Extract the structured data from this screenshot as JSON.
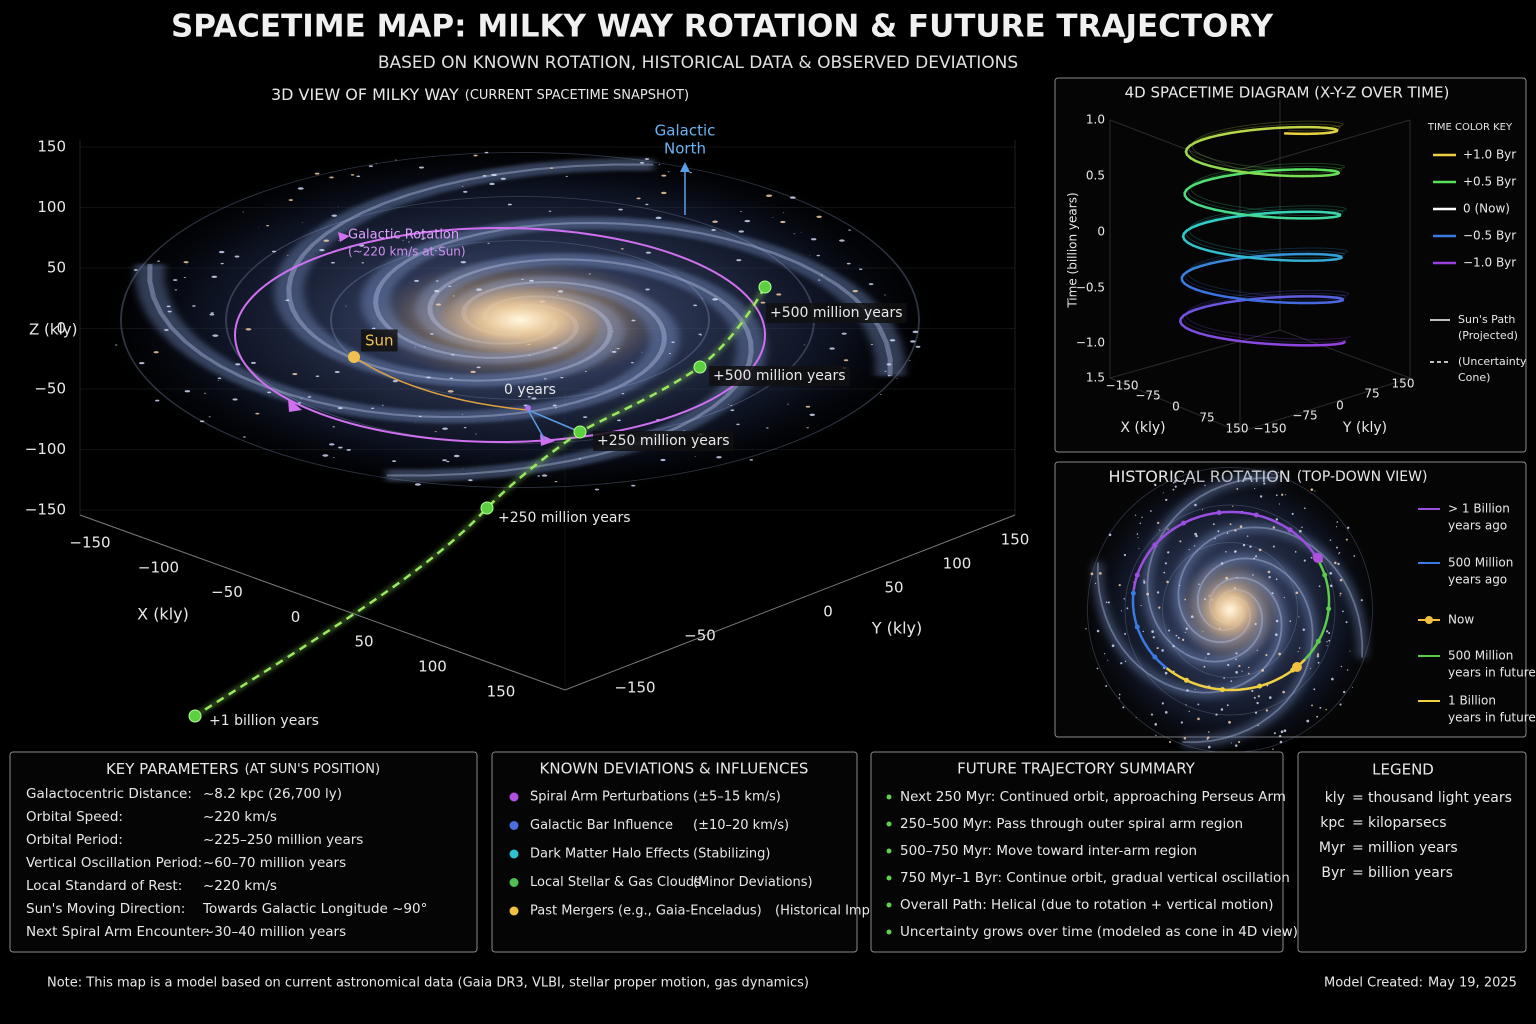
{
  "header": {
    "title": "SPACETIME MAP: MILKY WAY ROTATION & FUTURE TRAJECTORY",
    "subtitle": "BASED ON KNOWN ROTATION, HISTORICAL DATA & OBSERVED DEVIATIONS"
  },
  "main_view": {
    "title": "3D VIEW OF MILKY WAY",
    "title_note": "(CURRENT SPACETIME SNAPSHOT)",
    "z_label": "Z (kly)",
    "z_ticks": [
      "150",
      "100",
      "50",
      "0",
      "−50",
      "−100",
      "−150"
    ],
    "x_label": "X (kly)",
    "x_ticks": [
      "−150",
      "−100",
      "−50",
      "0",
      "50",
      "100",
      "150"
    ],
    "y_label": "Y (kly)",
    "y_ticks": [
      "−150",
      "−50",
      "0",
      "50",
      "100",
      "150"
    ],
    "north_label": [
      "Galactic",
      "North"
    ],
    "rotation_label": [
      "Galactic Rotation",
      "(~220 km/s at Sun)"
    ],
    "sun_label": "Sun",
    "annotations": [
      "+500 million years",
      "+500 million years",
      "0 years",
      "+250 million years",
      "+250 million years",
      "+1 billion years"
    ]
  },
  "spacetime_panel": {
    "title": "4D SPACETIME DIAGRAM (X-Y-Z OVER TIME)",
    "time_label": "Time (billion years)",
    "time_ticks": [
      "1.0",
      "0.5",
      "0",
      "−0.5",
      "−1.0",
      "1.5"
    ],
    "x_label": "X (kly)",
    "x_ticks": [
      "−150",
      "−75",
      "0",
      "75",
      "150"
    ],
    "y_label": "Y (kly)",
    "y_ticks": [
      "−150",
      "−75",
      "0",
      "75",
      "150"
    ],
    "key_title": "TIME COLOR KEY",
    "key": [
      {
        "label": "+1.0 Byr",
        "color": "#f0d040"
      },
      {
        "label": "+0.5 Byr",
        "color": "#5ce05a"
      },
      {
        "label": "0 (Now)",
        "color": "#ffffff"
      },
      {
        "label": "−0.5 Byr",
        "color": "#3b7ae0"
      },
      {
        "label": "−1.0 Byr",
        "color": "#9b3fe0"
      }
    ],
    "path_key": [
      [
        "Sun's Path",
        "(Projected)"
      ],
      [
        "(Uncertainty",
        "Cone)"
      ]
    ]
  },
  "historical_panel": {
    "title": "HISTORICAL ROTATION",
    "title_note": "(TOP-DOWN VIEW)",
    "legend": [
      {
        "lines": [
          "> 1 Billion",
          "years ago"
        ],
        "color": "#9b4fe0"
      },
      {
        "lines": [
          "500 Million",
          "years ago"
        ],
        "color": "#3b7ae0"
      },
      {
        "lines": [
          "Now"
        ],
        "color": "#f0c040"
      },
      {
        "lines": [
          "500 Million",
          "years in future"
        ],
        "color": "#5ccc4a"
      },
      {
        "lines": [
          "1 Billion",
          "years in future"
        ],
        "color": "#f0d040"
      }
    ]
  },
  "key_parameters": {
    "title": "KEY PARAMETERS",
    "title_note": "(AT SUN'S POSITION)",
    "rows": [
      [
        "Galactocentric Distance:",
        "~8.2 kpc (26,700 ly)"
      ],
      [
        "Orbital Speed:",
        "~220 km/s"
      ],
      [
        "Orbital Period:",
        "~225–250 million years"
      ],
      [
        "Vertical Oscillation Period:",
        "~60–70 million years"
      ],
      [
        "Local Standard of Rest:",
        "~220 km/s"
      ],
      [
        "Sun's Moving Direction:",
        "Towards Galactic Longitude ~90°"
      ],
      [
        "Next Spiral Arm Encounter:",
        "~30–40 million years"
      ]
    ]
  },
  "deviations": {
    "title": "KNOWN DEVIATIONS & INFLUENCES",
    "rows": [
      {
        "name": "Spiral Arm Perturbations",
        "effect": "(±5–15 km/s)",
        "color": "#b050e0"
      },
      {
        "name": "Galactic Bar Influence",
        "effect": "(±10–20 km/s)",
        "color": "#4a70e0"
      },
      {
        "name": "Dark Matter Halo Effects",
        "effect": "(Stabilizing)",
        "color": "#30c0d0"
      },
      {
        "name": "Local Stellar & Gas Clouds",
        "effect": "(Minor Deviations)",
        "color": "#50c050"
      },
      {
        "name": "Past Mergers (e.g., Gaia-Enceladus)",
        "effect": "(Historical Impact)",
        "color": "#f0c040"
      }
    ]
  },
  "future_summary": {
    "title": "FUTURE TRAJECTORY SUMMARY",
    "items": [
      "Next 250 Myr: Continued orbit, approaching Perseus Arm",
      "250–500 Myr: Pass through outer spiral arm region",
      "500–750 Myr: Move toward inter-arm region",
      "750 Myr–1 Byr: Continue orbit, gradual vertical oscillation",
      "Overall Path: Helical (due to rotation + vertical motion)",
      "Uncertainty grows over time (modeled as cone in 4D view)"
    ]
  },
  "legend": {
    "title": "LEGEND",
    "separator": "=",
    "rows": [
      [
        "kly",
        "thousand light years"
      ],
      [
        "kpc",
        "kiloparsecs"
      ],
      [
        "Myr",
        "million years"
      ],
      [
        "Byr",
        "billion years"
      ]
    ]
  },
  "footer": {
    "note": "Note: This map is a model based on current astronomical data (Gaia DR3, VLBI, stellar proper motion, gas dynamics)",
    "created_label": "Model Created:",
    "created_date": "May 19, 2025"
  }
}
